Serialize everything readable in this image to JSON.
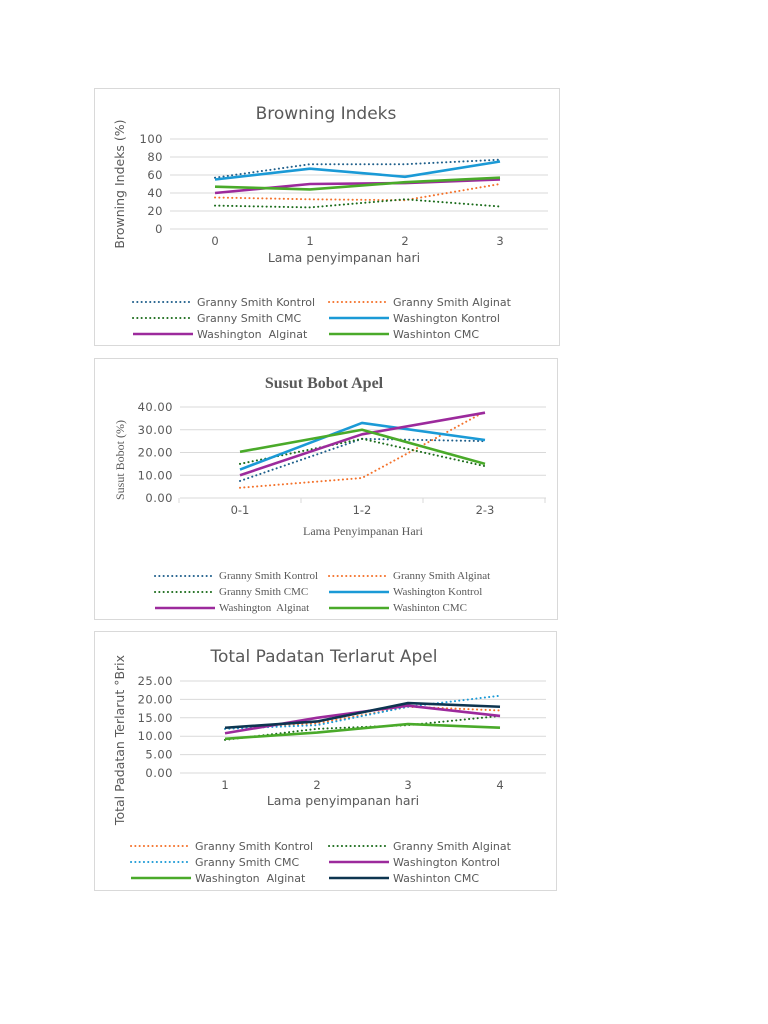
{
  "chart_data": [
    {
      "type": "line",
      "title": "Browning Indeks",
      "xlabel": "Lama penyimpanan hari",
      "ylabel": "Browning Indeks (%)",
      "categories": [
        "0",
        "1",
        "2",
        "3"
      ],
      "ylim": [
        0,
        100
      ],
      "yticks": [
        "0",
        "20",
        "40",
        "60",
        "80",
        "100"
      ],
      "grid": true,
      "legend": "bottom",
      "series": [
        {
          "name": "Granny Smith Kontrol",
          "values": [
            57,
            72,
            72,
            77
          ],
          "color": "#1f5f8b",
          "dash": "dotted"
        },
        {
          "name": "Granny Smith Alginat",
          "values": [
            35,
            33,
            32,
            50
          ],
          "color": "#f4722b",
          "dash": "dotted"
        },
        {
          "name": "Granny Smith CMC",
          "values": [
            26,
            24,
            33,
            25
          ],
          "color": "#1a6b1a",
          "dash": "dotted"
        },
        {
          "name": "Washington Kontrol",
          "values": [
            55,
            67,
            58,
            75
          ],
          "color": "#1b9ad6",
          "dash": "solid"
        },
        {
          "name": "Washington  Alginat",
          "values": [
            40,
            50,
            51,
            55
          ],
          "color": "#9c2a9c",
          "dash": "solid"
        },
        {
          "name": "Washinton CMC",
          "values": [
            47,
            44,
            52,
            57
          ],
          "color": "#4aaa2a",
          "dash": "solid"
        }
      ]
    },
    {
      "type": "line",
      "title": "Susut Bobot Apel",
      "xlabel": "Lama Penyimpanan Hari",
      "ylabel": "Susut Bobot (%)",
      "categories": [
        "0-1",
        "1-2",
        "2-3"
      ],
      "ylim": [
        0,
        40
      ],
      "yticks": [
        "0.00",
        "10.00",
        "20.00",
        "30.00",
        "40.00"
      ],
      "grid": true,
      "legend": "bottom",
      "series": [
        {
          "name": "Granny Smith Kontrol",
          "values": [
            7.5,
            26,
            25
          ],
          "color": "#1f5f8b",
          "dash": "dotted"
        },
        {
          "name": "Granny Smith Alginat",
          "values": [
            4.5,
            8.8,
            38
          ],
          "color": "#f4722b",
          "dash": "dotted"
        },
        {
          "name": "Granny Smith CMC",
          "values": [
            15,
            26,
            14
          ],
          "color": "#1a6b1a",
          "dash": "dotted"
        },
        {
          "name": "Washington Kontrol",
          "values": [
            12.5,
            33,
            25.5
          ],
          "color": "#1b9ad6",
          "dash": "solid"
        },
        {
          "name": "Washington  Alginat",
          "values": [
            10,
            28,
            37.5
          ],
          "color": "#9c2a9c",
          "dash": "solid"
        },
        {
          "name": "Washinton CMC",
          "values": [
            20.3,
            30,
            15
          ],
          "color": "#4aaa2a",
          "dash": "solid"
        }
      ]
    },
    {
      "type": "line",
      "title": "Total Padatan Terlarut Apel",
      "xlabel": "Lama penyimpanan hari",
      "ylabel": "Total Padatan Terlarut °Brix",
      "categories": [
        "1",
        "2",
        "3",
        "4"
      ],
      "ylim": [
        0,
        25
      ],
      "yticks": [
        "0.00",
        "5.00",
        "10.00",
        "15.00",
        "20.00",
        "25.00"
      ],
      "grid": true,
      "legend": "bottom",
      "series": [
        {
          "name": "Granny Smith Kontrol",
          "values": [
            12,
            13.5,
            18,
            17
          ],
          "color": "#f4722b",
          "dash": "dotted"
        },
        {
          "name": "Granny Smith Alginat",
          "values": [
            9,
            12,
            13,
            15.5
          ],
          "color": "#1a6b1a",
          "dash": "dotted"
        },
        {
          "name": "Granny Smith CMC",
          "values": [
            12,
            13,
            18,
            21
          ],
          "color": "#1b9ad6",
          "dash": "dotted"
        },
        {
          "name": "Washington Kontrol",
          "values": [
            10.8,
            15,
            18.3,
            15.5
          ],
          "color": "#9c2a9c",
          "dash": "solid"
        },
        {
          "name": "Washington  Alginat",
          "values": [
            9.3,
            11,
            13.3,
            12.3
          ],
          "color": "#4aaa2a",
          "dash": "solid"
        },
        {
          "name": "Washinton CMC",
          "values": [
            12.3,
            14,
            19,
            18
          ],
          "color": "#0d3550",
          "dash": "solid"
        }
      ]
    }
  ]
}
